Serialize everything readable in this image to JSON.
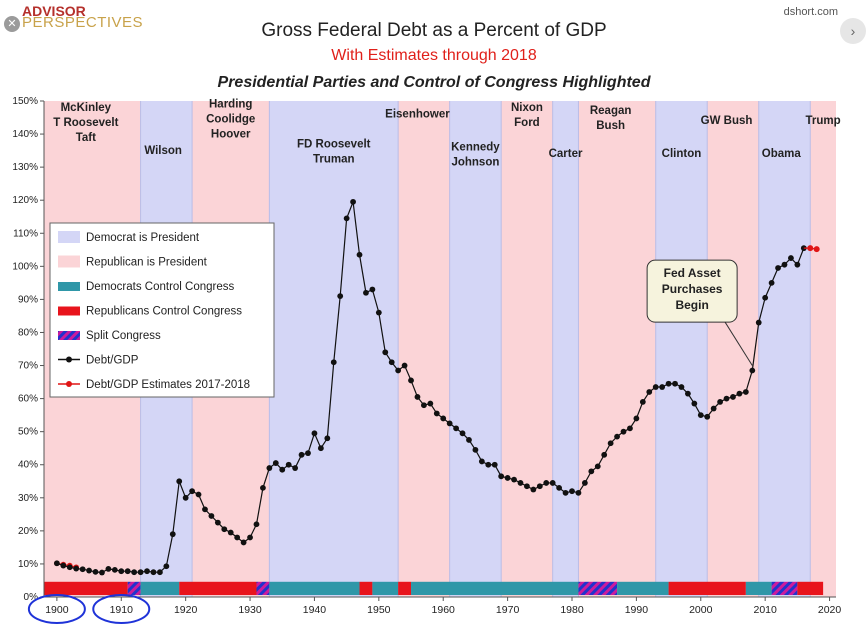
{
  "brand": {
    "line1": "ADVISOR",
    "line2": "PERSPECTIVES"
  },
  "source": "dshort.com",
  "close_glyph": "✕",
  "nav_glyph": "›",
  "chart_data": {
    "type": "line",
    "title": "Gross Federal Debt as a Percent of GDP",
    "subtitle": "With Estimates through 2018",
    "subtitle2": "Presidential Parties and Control of Congress Highlighted",
    "xlim": [
      1898,
      2021
    ],
    "ylim": [
      0,
      150
    ],
    "x_ticks": [
      1900,
      1910,
      1920,
      1930,
      1940,
      1950,
      1960,
      1970,
      1980,
      1990,
      2000,
      2010,
      2020
    ],
    "y_ticks": [
      "0%",
      "10%",
      "20%",
      "30%",
      "40%",
      "50%",
      "60%",
      "70%",
      "80%",
      "90%",
      "100%",
      "110%",
      "120%",
      "130%",
      "140%",
      "150%"
    ],
    "circled_ticks": [
      1900,
      1910
    ],
    "grid": false,
    "colors": {
      "dem_president": "#d4d6f6",
      "rep_president": "#fbd4d7",
      "dem_congress": "#2f97a8",
      "rep_congress": "#e8141c",
      "split_a": "#2233cc",
      "split_b": "#cc1b9c",
      "line": "#111111",
      "estimate": "#e01515",
      "circle": "#1f33d8"
    },
    "presidencies": [
      {
        "start": 1898,
        "end": 1913,
        "party": "R"
      },
      {
        "start": 1913,
        "end": 1921,
        "party": "D"
      },
      {
        "start": 1921,
        "end": 1933,
        "party": "R"
      },
      {
        "start": 1933,
        "end": 1953,
        "party": "D"
      },
      {
        "start": 1953,
        "end": 1961,
        "party": "R"
      },
      {
        "start": 1961,
        "end": 1969,
        "party": "D"
      },
      {
        "start": 1969,
        "end": 1977,
        "party": "R"
      },
      {
        "start": 1977,
        "end": 1981,
        "party": "D"
      },
      {
        "start": 1981,
        "end": 1993,
        "party": "R"
      },
      {
        "start": 1993,
        "end": 2001,
        "party": "D"
      },
      {
        "start": 2001,
        "end": 2009,
        "party": "R"
      },
      {
        "start": 2009,
        "end": 2017,
        "party": "D"
      },
      {
        "start": 2017,
        "end": 2021,
        "party": "R"
      }
    ],
    "president_labels": [
      {
        "text": [
          "McKinley",
          "T Roosevelt",
          "Taft"
        ],
        "x": 1904.5,
        "y": 147
      },
      {
        "text": [
          "Wilson"
        ],
        "x": 1916.5,
        "y": 134
      },
      {
        "text": [
          "Harding",
          "Coolidge",
          "Hoover"
        ],
        "x": 1927,
        "y": 148
      },
      {
        "text": [
          "FD Roosevelt",
          "Truman"
        ],
        "x": 1943,
        "y": 136
      },
      {
        "text": [
          "Eisenhower"
        ],
        "x": 1956,
        "y": 145
      },
      {
        "text": [
          "Kennedy",
          "Johnson"
        ],
        "x": 1965,
        "y": 135
      },
      {
        "text": [
          "Nixon",
          "Ford"
        ],
        "x": 1973,
        "y": 147
      },
      {
        "text": [
          "Carter"
        ],
        "x": 1979,
        "y": 133
      },
      {
        "text": [
          "Reagan",
          "Bush"
        ],
        "x": 1986,
        "y": 146
      },
      {
        "text": [
          "Clinton"
        ],
        "x": 1997,
        "y": 133
      },
      {
        "text": [
          "GW Bush"
        ],
        "x": 2004,
        "y": 143
      },
      {
        "text": [
          "Obama"
        ],
        "x": 2012.5,
        "y": 133
      },
      {
        "text": [
          "Trump"
        ],
        "x": 2019,
        "y": 143
      }
    ],
    "congress": [
      {
        "start": 1898,
        "end": 1911,
        "type": "R"
      },
      {
        "start": 1911,
        "end": 1913,
        "type": "S"
      },
      {
        "start": 1913,
        "end": 1919,
        "type": "D"
      },
      {
        "start": 1919,
        "end": 1931,
        "type": "R"
      },
      {
        "start": 1931,
        "end": 1933,
        "type": "S"
      },
      {
        "start": 1933,
        "end": 1947,
        "type": "D"
      },
      {
        "start": 1947,
        "end": 1949,
        "type": "R"
      },
      {
        "start": 1949,
        "end": 1953,
        "type": "D"
      },
      {
        "start": 1953,
        "end": 1955,
        "type": "R"
      },
      {
        "start": 1955,
        "end": 1981,
        "type": "D"
      },
      {
        "start": 1981,
        "end": 1987,
        "type": "S"
      },
      {
        "start": 1987,
        "end": 1995,
        "type": "D"
      },
      {
        "start": 1995,
        "end": 2007,
        "type": "R"
      },
      {
        "start": 2007,
        "end": 2011,
        "type": "D"
      },
      {
        "start": 2011,
        "end": 2015,
        "type": "S"
      },
      {
        "start": 2015,
        "end": 2019,
        "type": "R"
      }
    ],
    "debt_series": {
      "x": [
        1900,
        1901,
        1902,
        1903,
        1904,
        1905,
        1906,
        1907,
        1908,
        1909,
        1910,
        1911,
        1912,
        1913,
        1914,
        1915,
        1916,
        1917,
        1918,
        1919,
        1920,
        1921,
        1922,
        1923,
        1924,
        1925,
        1926,
        1927,
        1928,
        1929,
        1930,
        1931,
        1932,
        1933,
        1934,
        1935,
        1936,
        1937,
        1938,
        1939,
        1940,
        1941,
        1942,
        1943,
        1944,
        1945,
        1946,
        1947,
        1948,
        1949,
        1950,
        1951,
        1952,
        1953,
        1954,
        1955,
        1956,
        1957,
        1958,
        1959,
        1960,
        1961,
        1962,
        1963,
        1964,
        1965,
        1966,
        1967,
        1968,
        1969,
        1970,
        1971,
        1972,
        1973,
        1974,
        1975,
        1976,
        1977,
        1978,
        1979,
        1980,
        1981,
        1982,
        1983,
        1984,
        1985,
        1986,
        1987,
        1988,
        1989,
        1990,
        1991,
        1992,
        1993,
        1994,
        1995,
        1996,
        1997,
        1998,
        1999,
        2000,
        2001,
        2002,
        2003,
        2004,
        2005,
        2006,
        2007,
        2008,
        2009,
        2010,
        2011,
        2012,
        2013,
        2014,
        2015,
        2016
      ],
      "y": [
        10.2,
        9.5,
        9.0,
        8.6,
        8.4,
        8.0,
        7.6,
        7.4,
        8.5,
        8.2,
        7.8,
        7.8,
        7.5,
        7.5,
        7.8,
        7.5,
        7.5,
        9.3,
        19.0,
        35.0,
        30.0,
        32.0,
        31.0,
        26.5,
        24.5,
        22.5,
        20.5,
        19.5,
        18.0,
        16.5,
        18.0,
        22.0,
        33.0,
        39.0,
        40.5,
        38.5,
        40.0,
        39.0,
        43.0,
        43.5,
        49.5,
        45.0,
        48.0,
        71.0,
        91.0,
        114.5,
        119.5,
        103.5,
        92.0,
        93.0,
        86.0,
        74.0,
        71.0,
        68.5,
        70.0,
        65.5,
        60.5,
        58.0,
        58.5,
        55.5,
        54.0,
        52.5,
        51.0,
        49.5,
        47.5,
        44.5,
        41.0,
        40.0,
        40.0,
        36.5,
        36.0,
        35.5,
        34.5,
        33.5,
        32.5,
        33.5,
        34.5,
        34.5,
        33.0,
        31.5,
        32.0,
        31.5,
        34.5,
        38.0,
        39.5,
        43.0,
        46.5,
        48.5,
        50.0,
        51.0,
        54.0,
        59.0,
        62.0,
        63.5,
        63.5,
        64.5,
        64.5,
        63.5,
        61.5,
        58.5,
        55.0,
        54.5,
        57.0,
        59.0,
        60.0,
        60.5,
        61.5,
        62.0,
        68.5,
        83.0,
        90.5,
        95.0,
        99.5,
        100.5,
        102.5,
        100.5,
        105.5
      ]
    },
    "estimate_series": {
      "x_before": [
        1900,
        1901,
        1902,
        1903
      ],
      "y_before": [
        10.2,
        9.8,
        9.5,
        9.0
      ],
      "x": [
        2017,
        2018
      ],
      "y": [
        105.5,
        105.2
      ]
    },
    "legend": [
      {
        "label": "Democrat is President",
        "key": "dem_president"
      },
      {
        "label": "Republican is President",
        "key": "rep_president"
      },
      {
        "label": "Democrats Control Congress",
        "key": "dem_congress"
      },
      {
        "label": "Republicans Control Congress",
        "key": "rep_congress"
      },
      {
        "label": "Split Congress",
        "key": "split"
      },
      {
        "label": "Debt/GDP",
        "key": "line"
      },
      {
        "label": "Debt/GDP Estimates 2017-2018",
        "key": "estimate"
      }
    ],
    "legend_placement": "left-middle",
    "annotation": {
      "text": [
        "Fed Asset",
        "Purchases",
        "Begin"
      ],
      "x": 1998.5,
      "y": 94,
      "arrow_to": [
        2008,
        70
      ]
    }
  }
}
